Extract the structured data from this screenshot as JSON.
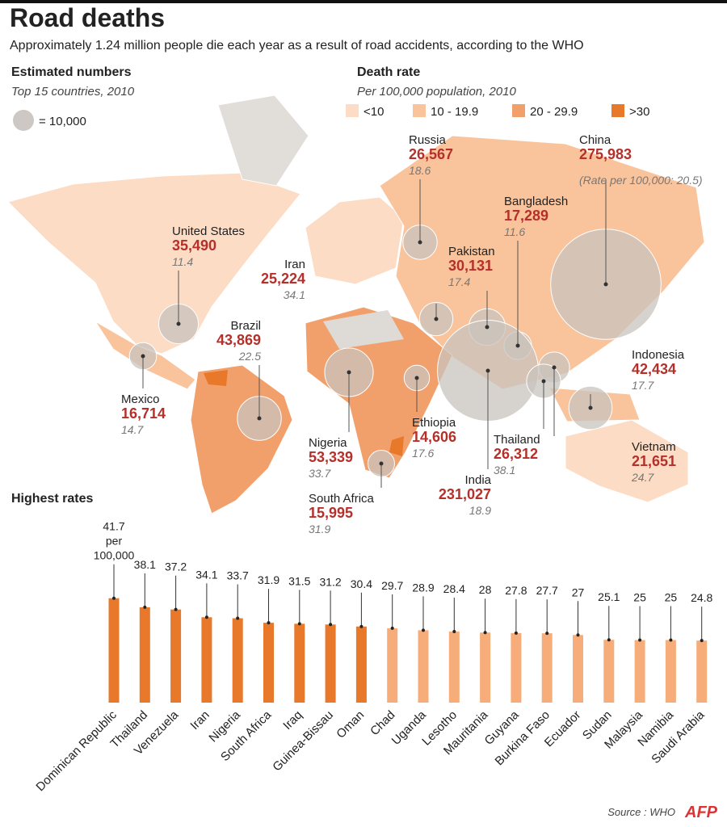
{
  "title": "Road deaths",
  "subtitle": "Approximately 1.24 million people die each year as a result of road accidents, according to the WHO",
  "estimated": {
    "heading": "Estimated numbers",
    "subheading": "Top 15 countries, 2010",
    "size_key": {
      "value": 10000,
      "label": "= 10,000"
    }
  },
  "death_rate": {
    "heading": "Death rate",
    "subheading": "Per 100,000 population, 2010",
    "legend": [
      {
        "label": "<10",
        "color": "#fcdcc4"
      },
      {
        "label": "10 - 19.9",
        "color": "#f9c39c"
      },
      {
        "label": "20 - 29.9",
        "color": "#f2a06b"
      },
      {
        "label": ">30",
        "color": "#e8782a"
      }
    ]
  },
  "countries": [
    {
      "name": "United States",
      "deaths": {
        "value": 35490,
        "label": "35,490"
      },
      "rate": 11.4
    },
    {
      "name": "Mexico",
      "deaths": {
        "value": 16714,
        "label": "16,714"
      },
      "rate": 14.7
    },
    {
      "name": "Brazil",
      "deaths": {
        "value": 43869,
        "label": "43,869"
      },
      "rate": 22.5
    },
    {
      "name": "Iran",
      "deaths": {
        "value": 25224,
        "label": "25,224"
      },
      "rate": 34.1
    },
    {
      "name": "Russia",
      "deaths": {
        "value": 26567,
        "label": "26,567"
      },
      "rate": 18.6
    },
    {
      "name": "Pakistan",
      "deaths": {
        "value": 30131,
        "label": "30,131"
      },
      "rate": 17.4
    },
    {
      "name": "Bangladesh",
      "deaths": {
        "value": 17289,
        "label": "17,289"
      },
      "rate": 11.6
    },
    {
      "name": "China",
      "deaths": {
        "value": 275983,
        "label": "275,983"
      },
      "note": "(Rate per 100,000: 20.5)"
    },
    {
      "name": "India",
      "deaths": {
        "value": 231027,
        "label": "231,027"
      },
      "rate": 18.9
    },
    {
      "name": "Indonesia",
      "deaths": {
        "value": 42434,
        "label": "42,434"
      },
      "rate": 17.7
    },
    {
      "name": "Vietnam",
      "deaths": {
        "value": 21651,
        "label": "21,651"
      },
      "rate": 24.7
    },
    {
      "name": "Thailand",
      "deaths": {
        "value": 26312,
        "label": "26,312"
      },
      "rate": 38.1
    },
    {
      "name": "Nigeria",
      "deaths": {
        "value": 53339,
        "label": "53,339"
      },
      "rate": 33.7
    },
    {
      "name": "Ethiopia",
      "deaths": {
        "value": 14606,
        "label": "14,606"
      },
      "rate": 17.6
    },
    {
      "name": "South Africa",
      "deaths": {
        "value": 15995,
        "label": "15,995"
      },
      "rate": 31.9
    }
  ],
  "chart_data": {
    "type": "bar",
    "title": "Highest rates",
    "categories": [
      "Dominican Republic",
      "Thailand",
      "Venezuela",
      "Iran",
      "Nigeria",
      "South Africa",
      "Iraq",
      "Guinea-Bissau",
      "Oman",
      "Chad",
      "Uganda",
      "Lesotho",
      "Mauritania",
      "Guyana",
      "Burkina Faso",
      "Ecuador",
      "Sudan",
      "Malaysia",
      "Namibia",
      "Saudi Arabia"
    ],
    "values": [
      41.7,
      38.1,
      37.2,
      34.1,
      33.7,
      31.9,
      31.5,
      31.2,
      30.4,
      29.7,
      28.9,
      28.4,
      28,
      27.8,
      27.7,
      27,
      25.1,
      25,
      25,
      24.8
    ],
    "value_labels": [
      "41.7 per 100,000",
      "38.1",
      "37.2",
      "34.1",
      "33.7",
      "31.9",
      "31.5",
      "31.2",
      "30.4",
      "29.7",
      "28.9",
      "28.4",
      "28",
      "27.8",
      "27.7",
      "27",
      "25.1",
      "25",
      "25",
      "24.8"
    ],
    "colors": [
      "#e8782a",
      "#e8782a",
      "#e8782a",
      "#e8782a",
      "#e8782a",
      "#e8782a",
      "#e8782a",
      "#e8782a",
      "#e8782a",
      "#f7ad7a",
      "#f7ad7a",
      "#f7ad7a",
      "#f7ad7a",
      "#f7ad7a",
      "#f7ad7a",
      "#f7ad7a",
      "#f7ad7a",
      "#f7ad7a",
      "#f7ad7a",
      "#f7ad7a"
    ]
  },
  "source": "Source : WHO",
  "logo": "AFP"
}
